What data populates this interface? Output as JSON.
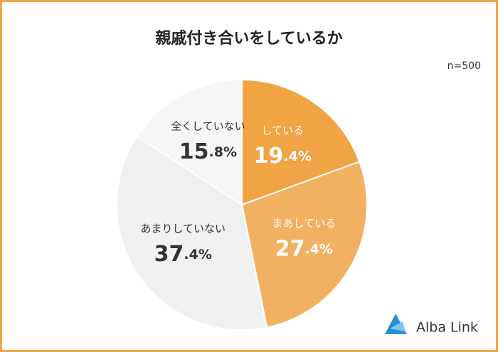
{
  "chart_data": {
    "type": "pie",
    "title": "親戚付き合いをしているか",
    "note": "n=500",
    "categories": [
      "している",
      "まあしている",
      "あまりしていない",
      "全くしていない"
    ],
    "values": [
      19.4,
      27.4,
      37.4,
      15.8
    ],
    "value_labels": [
      "19.4%",
      "27.4%",
      "37.4%",
      "15.8%"
    ],
    "colors": [
      "#f0a444",
      "#f2b062",
      "#f0f0f0",
      "#f6f6f6"
    ],
    "start_angle": 0,
    "direction": "clockwise"
  },
  "logo": "Alba Link"
}
